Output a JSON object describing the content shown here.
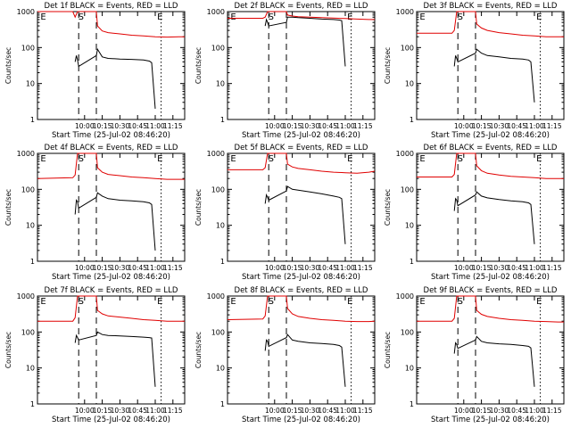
{
  "page": {
    "date_label": "25-Jul-02 08:46:20"
  },
  "colors": {
    "events": "#000000",
    "lld": "#e00000",
    "axes": "#000000",
    "background": "#ffffff"
  },
  "shared": {
    "ylabel": "Counts/sec",
    "xlabel": "Start Time (25-Jul-02 08:46:20)",
    "y_scale": "log",
    "ylim": [
      1,
      1000
    ],
    "y_ticks": [
      1,
      10,
      100,
      1000
    ],
    "y_tick_labels": [
      "1",
      "10",
      "100",
      "1000"
    ],
    "xlim_min": [
      -30,
      95
    ],
    "x_ticks_min": [
      10,
      25,
      40,
      55,
      70,
      85
    ],
    "x_tick_labels": [
      "10:00",
      "10:15",
      "10:30",
      "10:45",
      "11:00",
      "11:15"
    ],
    "dashed_lines_min": [
      5,
      20
    ],
    "dotted_lines_min": [
      75
    ],
    "marker_labels": [
      {
        "text": "E",
        "x": -25
      },
      {
        "text": "S",
        "x": 7
      },
      {
        "text": "E",
        "x": 74
      }
    ]
  },
  "chart_data": [
    {
      "type": "line",
      "title": "Det 1f BLACK = Events, RED = LLD",
      "series": [
        {
          "name": "LLD",
          "color": "red",
          "x": [
            -30,
            0,
            2,
            4,
            5,
            20,
            21,
            25,
            30,
            40,
            50,
            60,
            70,
            80,
            90,
            95
          ],
          "values": [
            1000,
            1000,
            700,
            1000,
            1000,
            1000,
            400,
            290,
            260,
            240,
            220,
            210,
            200,
            195,
            200,
            200
          ]
        },
        {
          "name": "Events",
          "color": "black",
          "x": [
            2,
            3,
            4,
            5,
            20,
            21,
            25,
            30,
            40,
            50,
            60,
            65,
            67,
            70
          ],
          "values": [
            40,
            60,
            45,
            30,
            60,
            90,
            55,
            50,
            48,
            47,
            45,
            42,
            38,
            2
          ]
        }
      ]
    },
    {
      "type": "line",
      "title": "Det 2f BLACK = Events, RED = LLD",
      "series": [
        {
          "name": "LLD",
          "color": "red",
          "x": [
            -30,
            0,
            2,
            4,
            5,
            20,
            21,
            25,
            30,
            40,
            50,
            60,
            70,
            80,
            90,
            95
          ],
          "values": [
            650,
            650,
            700,
            1000,
            1000,
            1000,
            800,
            750,
            720,
            700,
            680,
            660,
            640,
            620,
            600,
            600
          ]
        },
        {
          "name": "Events",
          "color": "black",
          "x": [
            2,
            3,
            4,
            5,
            20,
            21,
            25,
            30,
            40,
            50,
            60,
            65,
            67,
            70
          ],
          "values": [
            400,
            600,
            500,
            400,
            500,
            700,
            700,
            680,
            650,
            620,
            600,
            580,
            560,
            30
          ]
        }
      ]
    },
    {
      "type": "line",
      "title": "Det 3f BLACK = Events, RED = LLD",
      "series": [
        {
          "name": "LLD",
          "color": "red",
          "x": [
            -30,
            0,
            2,
            4,
            5,
            20,
            21,
            25,
            30,
            40,
            50,
            60,
            70,
            80,
            90,
            95
          ],
          "values": [
            250,
            250,
            300,
            1000,
            1000,
            1000,
            450,
            350,
            300,
            260,
            240,
            220,
            210,
            200,
            200,
            200
          ]
        },
        {
          "name": "Events",
          "color": "black",
          "x": [
            2,
            3,
            4,
            5,
            20,
            21,
            25,
            30,
            40,
            50,
            60,
            65,
            67,
            70
          ],
          "values": [
            30,
            60,
            50,
            40,
            70,
            90,
            70,
            60,
            55,
            50,
            48,
            45,
            40,
            3
          ]
        }
      ]
    },
    {
      "type": "line",
      "title": "Det 4f BLACK = Events, RED = LLD",
      "series": [
        {
          "name": "LLD",
          "color": "red",
          "x": [
            -30,
            0,
            2,
            4,
            5,
            20,
            21,
            25,
            30,
            40,
            50,
            60,
            70,
            80,
            90,
            95
          ],
          "values": [
            200,
            210,
            250,
            1000,
            1000,
            1000,
            400,
            300,
            260,
            240,
            220,
            210,
            200,
            190,
            190,
            190
          ]
        },
        {
          "name": "Events",
          "color": "black",
          "x": [
            2,
            3,
            4,
            5,
            20,
            21,
            25,
            30,
            40,
            50,
            60,
            65,
            67,
            70
          ],
          "values": [
            20,
            50,
            45,
            30,
            60,
            80,
            65,
            55,
            50,
            48,
            45,
            42,
            38,
            2
          ]
        }
      ]
    },
    {
      "type": "line",
      "title": "Det 5f BLACK = Events, RED = LLD",
      "series": [
        {
          "name": "LLD",
          "color": "red",
          "x": [
            -30,
            0,
            2,
            4,
            5,
            20,
            21,
            25,
            30,
            40,
            50,
            60,
            70,
            80,
            90,
            95
          ],
          "values": [
            350,
            350,
            400,
            1000,
            1000,
            1000,
            500,
            420,
            380,
            350,
            320,
            300,
            290,
            280,
            300,
            320
          ]
        },
        {
          "name": "Events",
          "color": "black",
          "x": [
            2,
            3,
            4,
            5,
            20,
            21,
            25,
            30,
            40,
            50,
            60,
            65,
            67,
            70
          ],
          "values": [
            40,
            70,
            60,
            50,
            90,
            120,
            100,
            95,
            85,
            75,
            65,
            60,
            55,
            3
          ]
        }
      ]
    },
    {
      "type": "line",
      "title": "Det 6f BLACK = Events, RED = LLD",
      "series": [
        {
          "name": "LLD",
          "color": "red",
          "x": [
            -30,
            0,
            2,
            4,
            5,
            20,
            21,
            25,
            30,
            40,
            50,
            60,
            70,
            80,
            90,
            95
          ],
          "values": [
            220,
            220,
            260,
            1000,
            1000,
            1000,
            450,
            330,
            280,
            250,
            230,
            220,
            210,
            200,
            200,
            200
          ]
        },
        {
          "name": "Events",
          "color": "black",
          "x": [
            2,
            3,
            4,
            5,
            20,
            21,
            25,
            30,
            40,
            50,
            60,
            65,
            67,
            70
          ],
          "values": [
            25,
            55,
            50,
            35,
            70,
            85,
            65,
            58,
            52,
            48,
            45,
            42,
            38,
            3
          ]
        }
      ]
    },
    {
      "type": "line",
      "title": "Det 7f BLACK = Events, RED = LLD",
      "series": [
        {
          "name": "LLD",
          "color": "red",
          "x": [
            -30,
            0,
            2,
            4,
            5,
            20,
            21,
            25,
            30,
            40,
            50,
            60,
            70,
            80,
            90,
            95
          ],
          "values": [
            200,
            200,
            250,
            1000,
            1000,
            1000,
            400,
            320,
            280,
            260,
            240,
            220,
            210,
            200,
            200,
            200
          ]
        },
        {
          "name": "Events",
          "color": "black",
          "x": [
            2,
            3,
            4,
            5,
            20,
            21,
            25,
            30,
            40,
            50,
            60,
            65,
            67,
            70
          ],
          "values": [
            50,
            80,
            70,
            60,
            80,
            100,
            85,
            80,
            78,
            75,
            72,
            70,
            68,
            3
          ]
        }
      ]
    },
    {
      "type": "line",
      "title": "Det 8f BLACK = Events, RED = LLD",
      "series": [
        {
          "name": "LLD",
          "color": "red",
          "x": [
            -30,
            0,
            2,
            4,
            5,
            20,
            21,
            25,
            30,
            40,
            50,
            60,
            70,
            80,
            90,
            95
          ],
          "values": [
            220,
            230,
            280,
            1000,
            1000,
            1000,
            450,
            320,
            270,
            240,
            220,
            210,
            200,
            195,
            195,
            200
          ]
        },
        {
          "name": "Events",
          "color": "black",
          "x": [
            2,
            3,
            4,
            5,
            20,
            21,
            25,
            30,
            40,
            50,
            60,
            65,
            67,
            70
          ],
          "values": [
            30,
            60,
            55,
            40,
            70,
            85,
            60,
            55,
            50,
            48,
            45,
            42,
            38,
            3
          ]
        }
      ]
    },
    {
      "type": "line",
      "title": "Det 9f BLACK = Events, RED = LLD",
      "series": [
        {
          "name": "LLD",
          "color": "red",
          "x": [
            -30,
            0,
            2,
            4,
            5,
            20,
            21,
            25,
            30,
            40,
            50,
            60,
            70,
            80,
            90,
            95
          ],
          "values": [
            200,
            200,
            240,
            1000,
            1000,
            1000,
            400,
            310,
            270,
            240,
            220,
            210,
            200,
            195,
            190,
            190
          ]
        },
        {
          "name": "Events",
          "color": "black",
          "x": [
            2,
            3,
            4,
            5,
            20,
            21,
            25,
            30,
            40,
            50,
            60,
            65,
            67,
            70
          ],
          "values": [
            25,
            50,
            45,
            35,
            60,
            75,
            55,
            50,
            47,
            45,
            42,
            40,
            36,
            3
          ]
        }
      ]
    }
  ]
}
